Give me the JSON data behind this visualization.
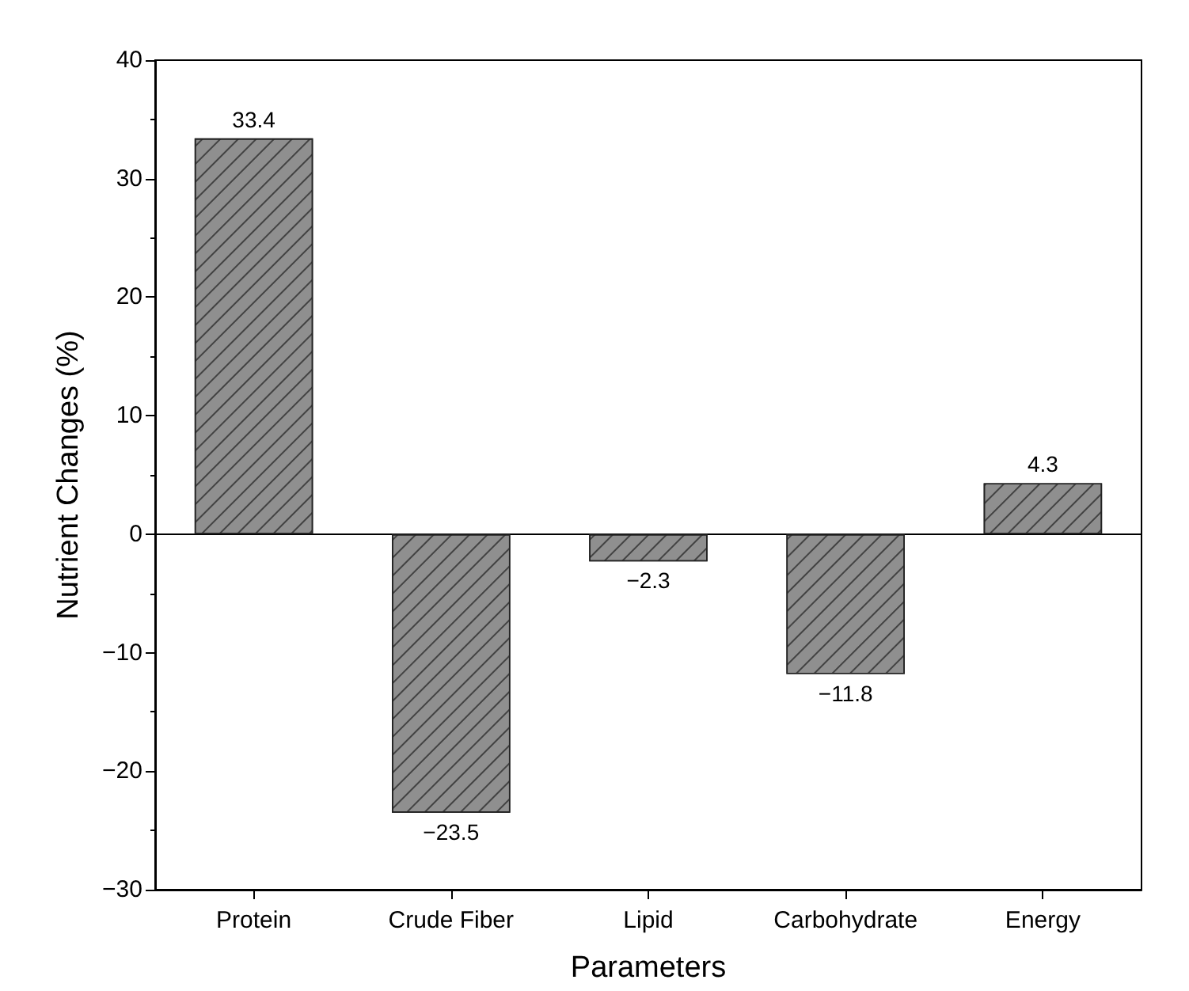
{
  "chart_data": {
    "type": "bar",
    "xlabel": "Parameters",
    "ylabel": "Nutrient Changes (%)",
    "categories": [
      "Protein",
      "Crude Fiber",
      "Lipid",
      "Carbohydrate",
      "Energy"
    ],
    "values": [
      33.4,
      -23.5,
      -2.3,
      -11.8,
      4.3
    ],
    "value_labels": [
      "33.4",
      "−23.5",
      "−2.3",
      "−11.8",
      "4.3"
    ],
    "color": "#8f8f8f",
    "ylim": [
      -30,
      40
    ],
    "yticks": [
      {
        "value": -30,
        "label": "−30"
      },
      {
        "value": -20,
        "label": "−20"
      },
      {
        "value": -10,
        "label": "−10"
      },
      0,
      10,
      20,
      30,
      40
    ]
  }
}
